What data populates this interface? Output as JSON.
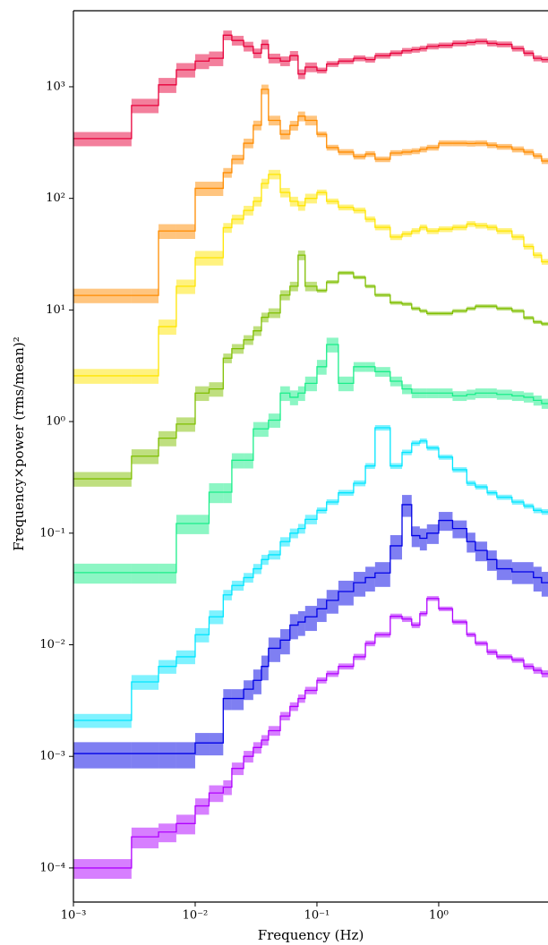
{
  "chart_data": {
    "type": "step",
    "xlabel": "Frequency (Hz)",
    "ylabel": "Frequency×power (rms/mean)²",
    "xscale": "log",
    "yscale": "log",
    "xlim": [
      0.001,
      7.9
    ],
    "ylim": [
      4.95e-05,
      4800
    ],
    "xticks": [
      {
        "value": 0.001,
        "label": "10⁻³"
      },
      {
        "value": 0.01,
        "label": "10⁻²"
      },
      {
        "value": 0.1,
        "label": "10⁻¹"
      },
      {
        "value": 1,
        "label": "10⁰"
      }
    ],
    "yticks": [
      {
        "value": 0.0001,
        "label": "10⁻⁴"
      },
      {
        "value": 0.001,
        "label": "10⁻³"
      },
      {
        "value": 0.01,
        "label": "10⁻²"
      },
      {
        "value": 0.1,
        "label": "10⁻¹"
      },
      {
        "value": 1,
        "label": "10⁰"
      },
      {
        "value": 10,
        "label": "10¹"
      },
      {
        "value": 100,
        "label": "10²"
      },
      {
        "value": 1000,
        "label": "10³"
      }
    ],
    "x": [
      0.001,
      0.003,
      0.005,
      0.007,
      0.01,
      0.013,
      0.017,
      0.02,
      0.025,
      0.03,
      0.035,
      0.04,
      0.05,
      0.06,
      0.07,
      0.08,
      0.1,
      0.12,
      0.15,
      0.2,
      0.25,
      0.3,
      0.4,
      0.5,
      0.6,
      0.7,
      0.8,
      1,
      1.3,
      1.7,
      2,
      2.5,
      3,
      4,
      5,
      6,
      7
    ],
    "series": [
      {
        "color": "#e8003a",
        "values": [
          343,
          680,
          1040,
          1420,
          1700,
          1800,
          2900,
          2600,
          2300,
          2000,
          2400,
          1800,
          1700,
          1900,
          1300,
          1500,
          1400,
          1600,
          1700,
          1800,
          1750,
          1900,
          2000,
          2100,
          2150,
          2200,
          2300,
          2350,
          2450,
          2500,
          2550,
          2450,
          2400,
          2200,
          2000,
          1800,
          1750
        ],
        "errors": [
          50,
          100,
          160,
          210,
          260,
          270,
          290,
          260,
          230,
          200,
          240,
          180,
          170,
          190,
          130,
          150,
          84,
          96,
          100,
          110,
          105,
          115,
          120,
          125,
          130,
          130,
          140,
          140,
          150,
          150,
          150,
          150,
          145,
          130,
          120,
          110,
          105
        ]
      },
      {
        "color": "#ff8c00",
        "values": [
          13.5,
          13.5,
          51,
          51,
          123,
          123,
          170,
          224,
          312,
          452,
          950,
          500,
          375,
          450,
          545,
          500,
          375,
          285,
          260,
          237,
          250,
          224,
          255,
          260,
          265,
          275,
          285,
          312,
          312,
          310,
          312,
          300,
          290,
          275,
          260,
          240,
          216
        ],
        "errors": [
          2,
          2,
          7.7,
          7.7,
          18,
          18,
          17,
          22,
          31,
          45,
          95,
          50,
          38,
          45,
          55,
          50,
          22,
          17,
          16,
          14,
          15,
          13,
          15,
          16,
          16,
          17,
          17,
          19,
          19,
          19,
          19,
          18,
          17,
          17,
          16,
          14,
          13
        ]
      },
      {
        "color": "#ffe500",
        "values": [
          2.57,
          2.57,
          7.1,
          16.3,
          29.4,
          29.4,
          54.6,
          65,
          78,
          94,
          136,
          164,
          113,
          94,
          86,
          100,
          113,
          94,
          83,
          78,
          65,
          55,
          45,
          48,
          51,
          55,
          51,
          53,
          55,
          59,
          57,
          55,
          51,
          45,
          37,
          31,
          27
        ],
        "errors": [
          0.39,
          0.39,
          1.1,
          2.4,
          4.4,
          4.4,
          5.5,
          6.5,
          7.8,
          9.4,
          14,
          16,
          11,
          9.4,
          8.6,
          10,
          6.8,
          5.6,
          5,
          4.7,
          3.9,
          3.3,
          2.7,
          2.9,
          3.1,
          3.3,
          3.1,
          3.2,
          3.3,
          3.5,
          3.4,
          3.3,
          3.1,
          2.7,
          2.2,
          1.9,
          1.6
        ]
      },
      {
        "color": "#7fbf00",
        "values": [
          0.307,
          0.49,
          0.71,
          0.95,
          1.8,
          1.96,
          3.7,
          4.5,
          5.4,
          6.5,
          8.6,
          9.4,
          13.6,
          16.3,
          31,
          16.3,
          14.9,
          17.8,
          21.5,
          19.6,
          16.3,
          13.6,
          11.6,
          11.3,
          10.3,
          9.8,
          9.3,
          9.3,
          9.8,
          10.3,
          10.8,
          10.8,
          10.3,
          9.8,
          8.5,
          7.8,
          7.5
        ],
        "errors": [
          0.046,
          0.074,
          0.11,
          0.14,
          0.27,
          0.29,
          0.37,
          0.45,
          0.54,
          0.65,
          0.86,
          0.94,
          1.4,
          1.6,
          3.1,
          1.6,
          0.6,
          0.7,
          0.86,
          0.78,
          0.65,
          0.54,
          0.46,
          0.45,
          0.41,
          0.39,
          0.37,
          0.37,
          0.39,
          0.41,
          0.43,
          0.43,
          0.41,
          0.39,
          0.34,
          0.31,
          0.3
        ]
      },
      {
        "color": "#1aee8a",
        "values": [
          0.0443,
          0.0443,
          0.0443,
          0.122,
          0.122,
          0.233,
          0.233,
          0.45,
          0.45,
          0.86,
          0.86,
          1.03,
          1.8,
          1.65,
          1.8,
          2.2,
          3.1,
          4.9,
          2.2,
          3.1,
          3.1,
          2.8,
          2.3,
          1.96,
          1.8,
          1.8,
          1.8,
          1.8,
          1.7,
          1.75,
          1.8,
          1.8,
          1.75,
          1.7,
          1.65,
          1.55,
          1.45
        ],
        "errors": [
          0.009,
          0.009,
          0.009,
          0.024,
          0.024,
          0.047,
          0.047,
          0.07,
          0.07,
          0.13,
          0.13,
          0.15,
          0.27,
          0.25,
          0.27,
          0.33,
          0.47,
          0.74,
          0.33,
          0.31,
          0.31,
          0.28,
          0.23,
          0.2,
          0.18,
          0.18,
          0.18,
          0.18,
          0.17,
          0.18,
          0.18,
          0.18,
          0.18,
          0.17,
          0.17,
          0.16,
          0.15
        ]
      },
      {
        "color": "#00e5ff",
        "values": [
          0.0021,
          0.00465,
          0.0064,
          0.0078,
          0.0123,
          0.0178,
          0.028,
          0.034,
          0.04,
          0.048,
          0.058,
          0.064,
          0.084,
          0.1,
          0.11,
          0.133,
          0.16,
          0.19,
          0.23,
          0.28,
          0.4,
          0.88,
          0.4,
          0.53,
          0.64,
          0.67,
          0.58,
          0.48,
          0.37,
          0.28,
          0.26,
          0.23,
          0.21,
          0.19,
          0.175,
          0.16,
          0.155
        ],
        "errors": [
          0.0003,
          0.0007,
          0.0009,
          0.0011,
          0.0018,
          0.0025,
          0.003,
          0.0035,
          0.004,
          0.005,
          0.006,
          0.006,
          0.008,
          0.01,
          0.011,
          0.013,
          0.01,
          0.011,
          0.014,
          0.017,
          0.024,
          0.05,
          0.024,
          0.03,
          0.035,
          0.035,
          0.03,
          0.025,
          0.02,
          0.015,
          0.014,
          0.012,
          0.011,
          0.01,
          0.009,
          0.009,
          0.009
        ]
      },
      {
        "color": "#0000e6",
        "values": [
          0.00106,
          0.00106,
          0.00106,
          0.00106,
          0.00132,
          0.00132,
          0.0033,
          0.0033,
          0.004,
          0.0048,
          0.0064,
          0.0093,
          0.011,
          0.015,
          0.016,
          0.0178,
          0.021,
          0.025,
          0.03,
          0.036,
          0.04,
          0.044,
          0.077,
          0.18,
          0.095,
          0.09,
          0.1,
          0.13,
          0.11,
          0.084,
          0.07,
          0.058,
          0.048,
          0.045,
          0.045,
          0.04,
          0.036
        ],
        "errors": [
          0.00028,
          0.00028,
          0.00028,
          0.00028,
          0.0003,
          0.0003,
          0.0007,
          0.0007,
          0.0008,
          0.0012,
          0.0016,
          0.0023,
          0.0028,
          0.0038,
          0.004,
          0.0045,
          0.005,
          0.006,
          0.0075,
          0.009,
          0.01,
          0.011,
          0.019,
          0.04,
          0.02,
          0.02,
          0.02,
          0.025,
          0.02,
          0.017,
          0.014,
          0.012,
          0.01,
          0.01,
          0.01,
          0.01,
          0.009
        ]
      },
      {
        "color": "#b000ff",
        "values": [
          0.0001,
          0.00019,
          0.00021,
          0.00025,
          0.00036,
          0.00047,
          0.00053,
          0.00078,
          0.001,
          0.0012,
          0.0014,
          0.0017,
          0.0023,
          0.0028,
          0.0033,
          0.0039,
          0.0048,
          0.0055,
          0.0064,
          0.0078,
          0.0103,
          0.0123,
          0.018,
          0.017,
          0.015,
          0.019,
          0.026,
          0.021,
          0.016,
          0.0123,
          0.0103,
          0.0086,
          0.0078,
          0.0073,
          0.0064,
          0.0059,
          0.0055
        ],
        "errors": [
          2e-05,
          4e-05,
          4e-05,
          5e-05,
          6e-05,
          8e-05,
          8e-05,
          0.0001,
          0.00012,
          0.00014,
          0.00015,
          0.00017,
          0.0002,
          0.00025,
          0.00028,
          0.0003,
          0.0003,
          0.00035,
          0.0004,
          0.0005,
          0.0006,
          0.0007,
          0.001,
          0.001,
          0.0009,
          0.001,
          0.0013,
          0.001,
          0.0008,
          0.0006,
          0.0005,
          0.0005,
          0.0004,
          0.0004,
          0.0004,
          0.0004,
          0.0004
        ]
      }
    ]
  }
}
